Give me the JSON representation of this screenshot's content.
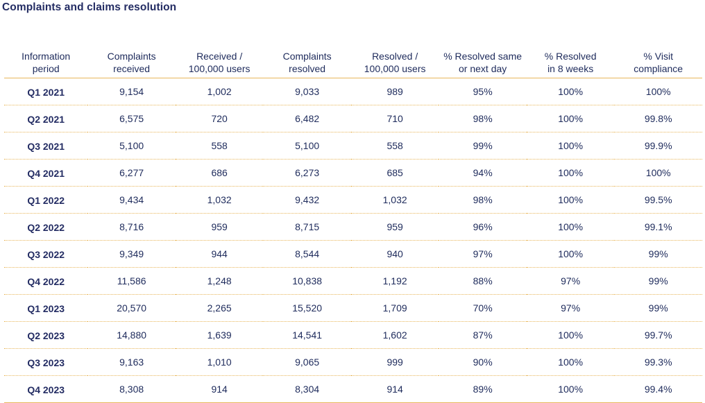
{
  "title": "Complaints and claims resolution",
  "headers": [
    [
      "Information",
      "period"
    ],
    [
      "Complaints",
      "received"
    ],
    [
      "Received /",
      "100,000 users"
    ],
    [
      "Complaints",
      "resolved"
    ],
    [
      "Resolved /",
      "100,000 users"
    ],
    [
      "% Resolved same",
      "or next day"
    ],
    [
      "% Resolved",
      "in 8 weeks"
    ],
    [
      "% Visit",
      "compliance"
    ]
  ],
  "rows": [
    [
      "Q1 2021",
      "9,154",
      "1,002",
      "9,033",
      "989",
      "95%",
      "100%",
      "100%"
    ],
    [
      "Q2 2021",
      "6,575",
      "720",
      "6,482",
      "710",
      "98%",
      "100%",
      "99.8%"
    ],
    [
      "Q3 2021",
      "5,100",
      "558",
      "5,100",
      "558",
      "99%",
      "100%",
      "99.9%"
    ],
    [
      "Q4 2021",
      "6,277",
      "686",
      "6,273",
      "685",
      "94%",
      "100%",
      "100%"
    ],
    [
      "Q1 2022",
      "9,434",
      "1,032",
      "9,432",
      "1,032",
      "98%",
      "100%",
      "99.5%"
    ],
    [
      "Q2 2022",
      "8,716",
      "959",
      "8,715",
      "959",
      "96%",
      "100%",
      "99.1%"
    ],
    [
      "Q3 2022",
      "9,349",
      "944",
      "8,544",
      "940",
      "97%",
      "100%",
      "99%"
    ],
    [
      "Q4 2022",
      "11,586",
      "1,248",
      "10,838",
      "1,192",
      "88%",
      "97%",
      "99%"
    ],
    [
      "Q1 2023",
      "20,570",
      "2,265",
      "15,520",
      "1,709",
      "70%",
      "97%",
      "99%"
    ],
    [
      "Q2 2023",
      "14,880",
      "1,639",
      "14,541",
      "1,602",
      "87%",
      "100%",
      "99.7%"
    ],
    [
      "Q3 2023",
      "9,163",
      "1,010",
      "9,065",
      "999",
      "90%",
      "100%",
      "99.3%"
    ],
    [
      "Q4 2023",
      "8,308",
      "914",
      "8,304",
      "914",
      "89%",
      "100%",
      "99.4%"
    ]
  ],
  "colors": {
    "text": "#1d2a5b",
    "title": "#232c63",
    "rule": "#e8b65a"
  }
}
